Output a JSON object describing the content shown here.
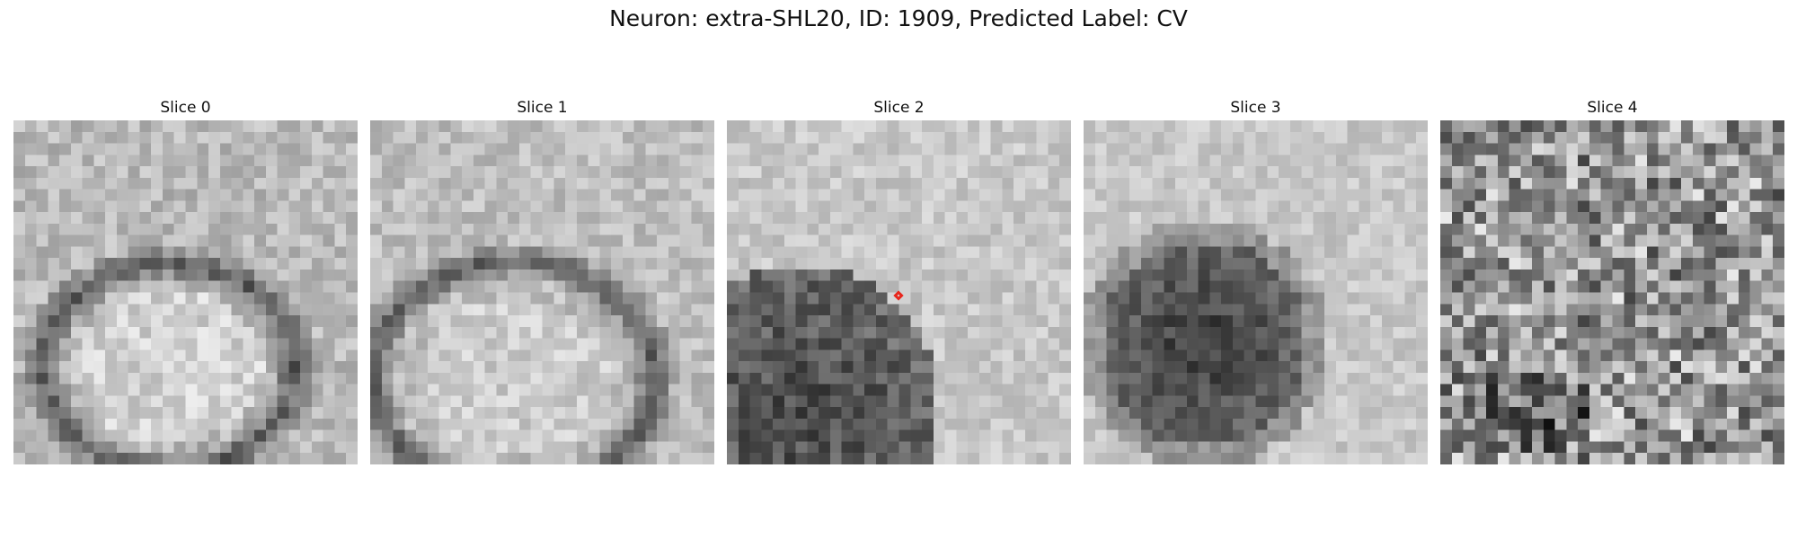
{
  "figure": {
    "title": "Neuron: extra-SHL20, ID: 1909, Predicted Label: CV"
  },
  "slices": [
    {
      "label": "Slice 0",
      "has_marker": false
    },
    {
      "label": "Slice 1",
      "has_marker": false
    },
    {
      "label": "Slice 2",
      "has_marker": true
    },
    {
      "label": "Slice 3",
      "has_marker": false
    },
    {
      "label": "Slice 4",
      "has_marker": false
    }
  ],
  "marker": {
    "shape": "diamond",
    "color": "#e8261c"
  },
  "colormap": "gray"
}
